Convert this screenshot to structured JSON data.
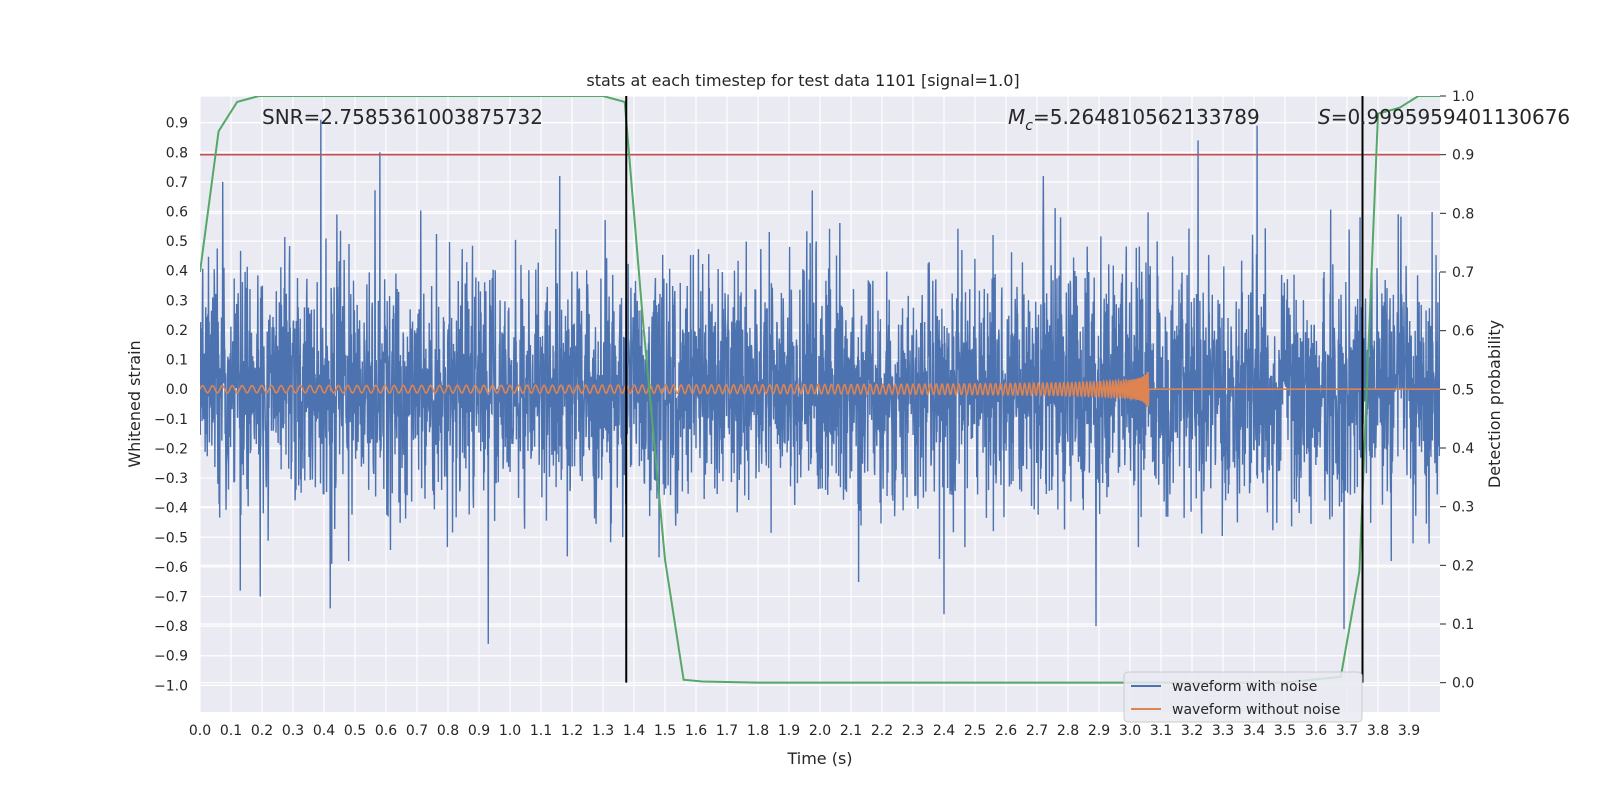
{
  "chart_data": {
    "type": "line",
    "title": "stats at each timestep for test data 1101 [signal=1.0]",
    "xlabel": "Time (s)",
    "ylabel": "Whitened strain",
    "y2label": "Detection probability",
    "xlim": [
      0.0,
      4.0
    ],
    "ylim": [
      -1.09,
      0.99
    ],
    "y2lim": [
      -0.05,
      1.0
    ],
    "xticks": [
      "0.0",
      "0.1",
      "0.2",
      "0.3",
      "0.4",
      "0.5",
      "0.6",
      "0.7",
      "0.8",
      "0.9",
      "1.0",
      "1.1",
      "1.2",
      "1.3",
      "1.4",
      "1.5",
      "1.6",
      "1.7",
      "1.8",
      "1.9",
      "2.0",
      "2.1",
      "2.2",
      "2.3",
      "2.4",
      "2.5",
      "2.6",
      "2.7",
      "2.8",
      "2.9",
      "3.0",
      "3.1",
      "3.2",
      "3.3",
      "3.4",
      "3.5",
      "3.6",
      "3.7",
      "3.8",
      "3.9"
    ],
    "yticks": [
      "0.9",
      "0.8",
      "0.7",
      "0.6",
      "0.5",
      "0.4",
      "0.3",
      "0.2",
      "0.1",
      "0.0",
      "−0.1",
      "−0.2",
      "−0.3",
      "−0.4",
      "−0.5",
      "−0.6",
      "−0.7",
      "−0.8",
      "−0.9",
      "−1.0"
    ],
    "y2ticks": [
      "1.0",
      "0.9",
      "0.8",
      "0.7",
      "0.6",
      "0.5",
      "0.4",
      "0.3",
      "0.2",
      "0.1",
      "0.0"
    ],
    "annotations": {
      "snr": "SNR=2.7585361003875732",
      "mc_symbol": "M",
      "mc_sub": "c",
      "mc_value": "=5.264810562133789",
      "s_symbol": "S",
      "s_value": "=0.9995959401130676"
    },
    "threshold": {
      "axis": "right",
      "value": 0.9,
      "color": "#c44e52"
    },
    "vlines": [
      1.375,
      3.75
    ],
    "legend": {
      "position": "lower right",
      "items": [
        {
          "label": "waveform with noise",
          "color": "#4c72b0"
        },
        {
          "label": "waveform without noise",
          "color": "#dd8452"
        }
      ]
    },
    "series": [
      {
        "name": "waveform with noise",
        "axis": "left",
        "color": "#4c72b0",
        "kind": "noise",
        "noise_sigma": 0.2,
        "spikes": [
          {
            "t": 0.39,
            "y": 0.91
          },
          {
            "t": 0.58,
            "y": 0.8
          },
          {
            "t": 0.93,
            "y": -0.86
          },
          {
            "t": 3.22,
            "y": 0.84
          },
          {
            "t": 3.41,
            "y": 0.89
          },
          {
            "t": 3.69,
            "y": -0.81
          },
          {
            "t": 2.89,
            "y": -0.8
          },
          {
            "t": 2.4,
            "y": -0.76
          },
          {
            "t": 0.42,
            "y": -0.74
          },
          {
            "t": 0.13,
            "y": -0.68
          },
          {
            "t": 1.16,
            "y": 0.72
          },
          {
            "t": 2.72,
            "y": 0.72
          }
        ]
      },
      {
        "name": "waveform without noise",
        "axis": "left",
        "color": "#dd8452",
        "kind": "chirp",
        "t_merger": 3.06,
        "amp_start": 0.012,
        "amp_peak": 0.07
      },
      {
        "name": "detection probability",
        "axis": "right",
        "color": "#55a868",
        "x": [
          0.0,
          0.06,
          0.12,
          0.19,
          0.25,
          0.5,
          1.0,
          1.3,
          1.37,
          1.43,
          1.5,
          1.56,
          1.62,
          1.8,
          2.0,
          2.5,
          3.0,
          3.5,
          3.68,
          3.74,
          3.8,
          3.87,
          3.93,
          4.0
        ],
        "y": [
          0.7,
          0.94,
          0.99,
          1.0,
          1.0,
          1.0,
          1.0,
          1.0,
          0.99,
          0.61,
          0.21,
          0.005,
          0.002,
          0.0,
          0.0,
          0.0,
          0.0,
          0.0,
          0.01,
          0.19,
          0.97,
          0.98,
          1.0,
          1.0
        ]
      }
    ]
  }
}
